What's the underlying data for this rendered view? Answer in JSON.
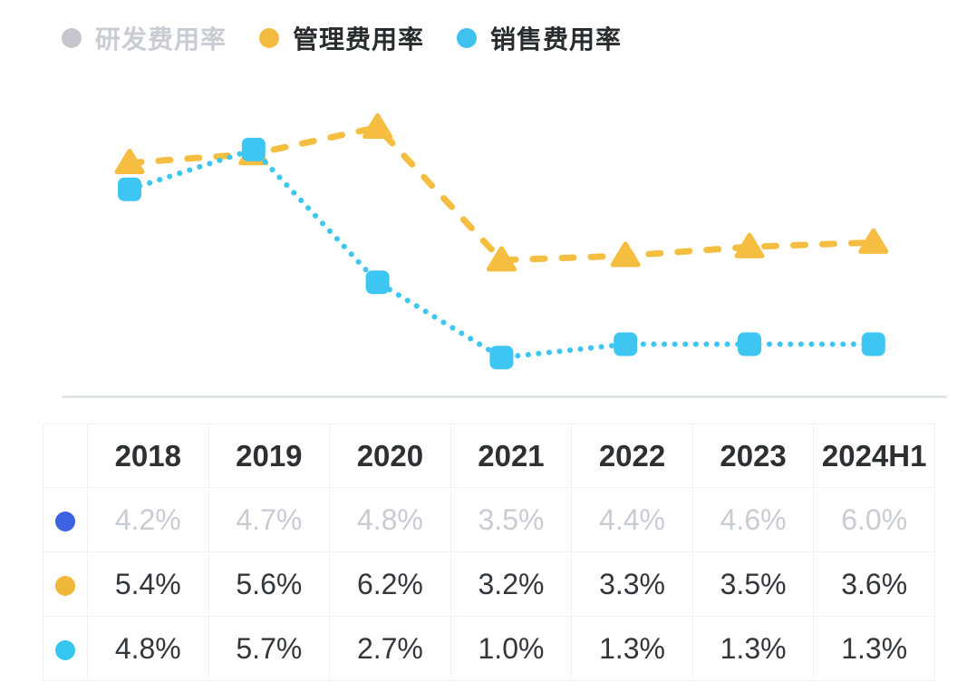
{
  "legend": {
    "items": [
      {
        "id": "rnd",
        "label": "研发费用率",
        "dot_color": "#c5c7cc",
        "text_color": "#c9ccd2",
        "active": false
      },
      {
        "id": "admin",
        "label": "管理费用率",
        "dot_color": "#f3bc41",
        "text_color": "#2a2b2f",
        "active": true
      },
      {
        "id": "sales",
        "label": "销售费用率",
        "dot_color": "#3fc1ef",
        "text_color": "#2a2b2f",
        "active": true
      }
    ]
  },
  "chart_data": {
    "type": "line",
    "categories": [
      "2018",
      "2019",
      "2020",
      "2021",
      "2022",
      "2023",
      "2024H1"
    ],
    "unit": "%",
    "ylim": [
      0,
      6.6
    ],
    "grid": false,
    "legend_position": "top-left",
    "xlabel": "",
    "ylabel": "",
    "series": [
      {
        "name": "研发费用率",
        "values": [
          4.2,
          4.7,
          4.8,
          3.5,
          4.4,
          4.6,
          6.0
        ],
        "color": "#3d63e0",
        "marker": "circle",
        "line": "solid",
        "visible": false
      },
      {
        "name": "管理费用率",
        "values": [
          5.4,
          5.6,
          6.2,
          3.2,
          3.3,
          3.5,
          3.6
        ],
        "color": "#f5be41",
        "marker": "triangle",
        "line": "dashed",
        "visible": true
      },
      {
        "name": "销售费用率",
        "values": [
          4.8,
          5.7,
          2.7,
          1.0,
          1.3,
          1.3,
          1.3
        ],
        "color": "#3ec6f2",
        "marker": "square",
        "line": "dotted",
        "visible": true
      }
    ]
  },
  "table": {
    "headers": [
      "2018",
      "2019",
      "2020",
      "2021",
      "2022",
      "2023",
      "2024H1"
    ],
    "rows": [
      {
        "series": "研发费用率",
        "dot_color": "#3d63e0",
        "muted": true,
        "values": [
          "4.2%",
          "4.7%",
          "4.8%",
          "3.5%",
          "4.4%",
          "4.6%",
          "6.0%"
        ]
      },
      {
        "series": "管理费用率",
        "dot_color": "#f0b83b",
        "muted": false,
        "values": [
          "5.4%",
          "5.6%",
          "6.2%",
          "3.2%",
          "3.3%",
          "3.5%",
          "3.6%"
        ]
      },
      {
        "series": "销售费用率",
        "dot_color": "#35c7f0",
        "muted": false,
        "values": [
          "4.8%",
          "5.7%",
          "2.7%",
          "1.0%",
          "1.3%",
          "1.3%",
          "1.3%"
        ]
      }
    ]
  }
}
